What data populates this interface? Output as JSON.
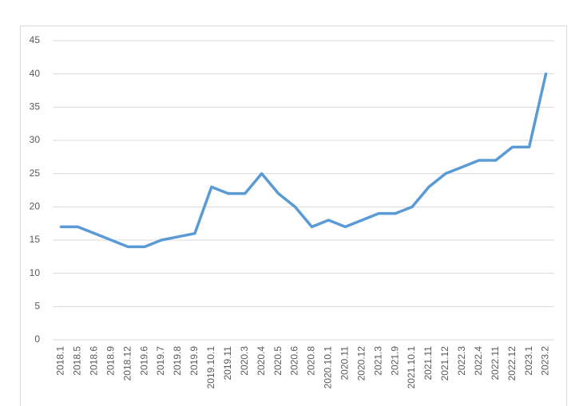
{
  "chart_data": {
    "type": "line",
    "categories": [
      "2018.1",
      "2018.5",
      "2018.6",
      "2018.9",
      "2018.12",
      "2019.6",
      "2019.7",
      "2019.8",
      "2019.9",
      "2019.10.1",
      "2019.11",
      "2020.3",
      "2020.4",
      "2020.5",
      "2020.6",
      "2020.8",
      "2020.10.1",
      "2020.11",
      "2020.12",
      "2021.3",
      "2021.9",
      "2021.10.1",
      "2021.11",
      "2021.12",
      "2022.3",
      "2022.4",
      "2022.11",
      "2022.12",
      "2023.1",
      "2023.2"
    ],
    "values": [
      17,
      17,
      16,
      15,
      14,
      14,
      15,
      15.5,
      16,
      23,
      22,
      22,
      25,
      22,
      20,
      17,
      18,
      17,
      18,
      19,
      19,
      20,
      23,
      25,
      26,
      27,
      27,
      29,
      29,
      40
    ],
    "color": "#5b9bd5",
    "ylim": [
      0,
      45
    ],
    "yticks": [
      0,
      5,
      10,
      15,
      20,
      25,
      30,
      35,
      40,
      45
    ],
    "grid": true
  }
}
